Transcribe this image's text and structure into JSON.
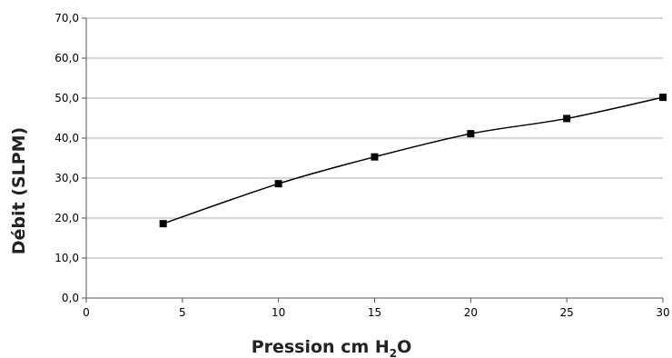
{
  "chart_data": {
    "type": "line",
    "title": "",
    "xlabel": "Pression cm H",
    "xlabel_sub": "2",
    "xlabel_suffix": "O",
    "ylabel": "Débit (SLPM)",
    "xlim": [
      0,
      30
    ],
    "ylim": [
      0,
      70
    ],
    "x_ticks": [
      0,
      5,
      10,
      15,
      20,
      25,
      30
    ],
    "y_ticks": [
      0,
      10,
      20,
      30,
      40,
      50,
      60,
      70
    ],
    "y_tick_labels": [
      "0,0",
      "10,0",
      "20,0",
      "30,0",
      "40,0",
      "50,0",
      "60,0",
      "70,0"
    ],
    "grid": "horizontal",
    "legend": "none",
    "series": [
      {
        "x": [
          4,
          10,
          15,
          20,
          25,
          30
        ],
        "values": [
          18.6,
          28.6,
          35.3,
          41.1,
          44.9,
          50.2
        ],
        "color": "#000000",
        "marker": "square"
      }
    ]
  }
}
